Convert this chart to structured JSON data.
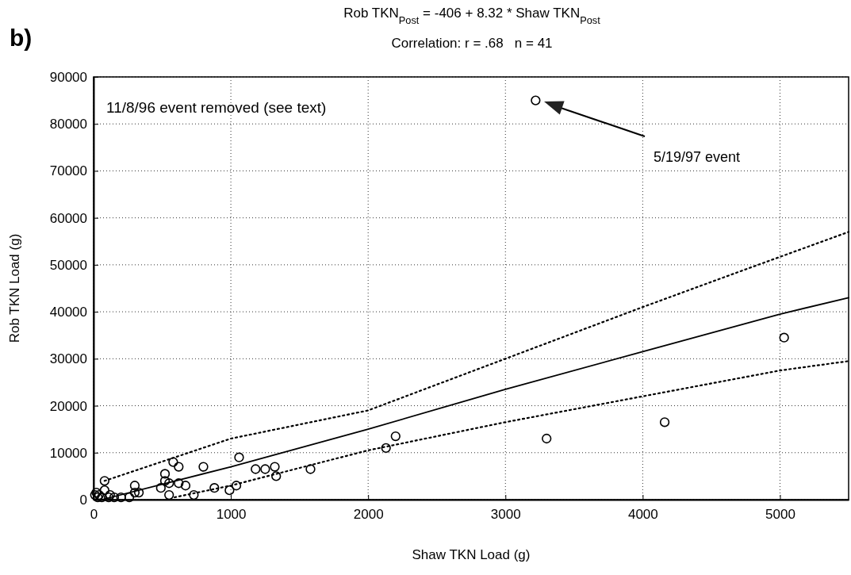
{
  "chart_data": {
    "type": "scatter",
    "title": "Rob TKN$_{Post}$ = -406 + 8.32 * Shaw TKN$_{Post}$",
    "subtitle": "Correlation: r = .68   n = 41",
    "xlabel": "Shaw TKN Load (g)",
    "ylabel": "Rob TKN Load (g)",
    "xlim": [
      0,
      5500
    ],
    "ylim": [
      0,
      90000
    ],
    "xticks": [
      0,
      1000,
      2000,
      3000,
      4000,
      5000
    ],
    "yticks": [
      0,
      10000,
      20000,
      30000,
      40000,
      50000,
      60000,
      70000,
      80000,
      90000
    ],
    "grid": true,
    "marker": "circle",
    "annotations": [
      "b)",
      "11/8/96 event removed (see text)",
      "5/19/97 event"
    ],
    "series": [
      {
        "color": "#000000",
        "x": [
          20,
          40,
          80,
          80,
          110,
          150,
          200,
          300,
          300,
          330,
          490,
          520,
          520,
          550,
          550,
          580,
          620,
          620,
          670,
          730,
          800,
          880,
          990,
          1040,
          1060,
          1180,
          1250,
          1320,
          1330,
          1580,
          2130,
          2200,
          3300,
          4160,
          5030,
          3220,
          10,
          30,
          60,
          120,
          260
        ],
        "values": [
          1500,
          1000,
          2000,
          4000,
          500,
          500,
          500,
          3000,
          1500,
          1500,
          2500,
          4000,
          5500,
          3500,
          1000,
          8000,
          7000,
          3500,
          3000,
          1000,
          7000,
          2500,
          2000,
          3000,
          9000,
          6500,
          6500,
          7000,
          5000,
          6500,
          11000,
          13500,
          13000,
          16500,
          34500,
          85000,
          1000,
          500,
          500,
          1000,
          500
        ]
      },
      {
        "type": "line",
        "color": "#000000",
        "line_style": "solid",
        "marker": "none",
        "x": [
          60,
          1000,
          2000,
          3000,
          4000,
          5000,
          5500
        ],
        "values": [
          0,
          7000,
          15000,
          23500,
          31500,
          39500,
          43000
        ]
      },
      {
        "type": "line",
        "color": "#000000",
        "line_style": "dotted",
        "marker": "none",
        "x": [
          80,
          1000,
          2000,
          3000,
          4000,
          4700,
          5500
        ],
        "values": [
          4000,
          13000,
          19000,
          30000,
          41000,
          48500,
          57000
        ]
      },
      {
        "type": "line",
        "color": "#000000",
        "line_style": "dotted",
        "marker": "none",
        "x": [
          590,
          1000,
          2000,
          3000,
          4000,
          5000,
          5500
        ],
        "values": [
          500,
          3000,
          10500,
          16500,
          22000,
          27500,
          29500
        ]
      }
    ]
  }
}
